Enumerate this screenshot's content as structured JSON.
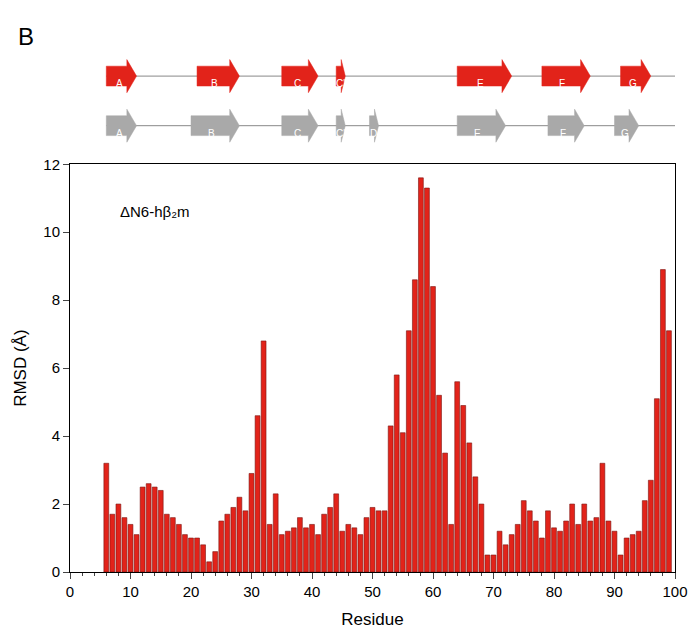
{
  "chart_data": {
    "type": "bar",
    "panel_label": "B",
    "annotation": "ΔN6-hβ₂m",
    "x_label": "Residue",
    "y_label": "RMSD (Å)",
    "color": "#e2231a",
    "x": [
      6,
      7,
      8,
      9,
      10,
      11,
      12,
      13,
      14,
      15,
      16,
      17,
      18,
      19,
      20,
      21,
      22,
      23,
      24,
      25,
      26,
      27,
      28,
      29,
      30,
      31,
      32,
      33,
      34,
      35,
      36,
      37,
      38,
      39,
      40,
      41,
      42,
      43,
      44,
      45,
      46,
      47,
      48,
      49,
      50,
      51,
      52,
      53,
      54,
      55,
      56,
      57,
      58,
      59,
      60,
      61,
      62,
      63,
      64,
      65,
      66,
      67,
      68,
      69,
      70,
      71,
      72,
      73,
      74,
      75,
      76,
      77,
      78,
      79,
      80,
      81,
      82,
      83,
      84,
      85,
      86,
      87,
      88,
      89,
      90,
      91,
      92,
      93,
      94,
      95,
      96,
      97,
      98,
      99
    ],
    "values": [
      3.2,
      1.7,
      2.0,
      1.6,
      1.4,
      1.1,
      2.5,
      2.6,
      2.5,
      2.4,
      1.7,
      1.6,
      1.4,
      1.1,
      1.0,
      1.0,
      0.8,
      0.3,
      0.6,
      1.5,
      1.7,
      1.9,
      2.2,
      1.8,
      2.9,
      4.6,
      6.8,
      1.4,
      2.3,
      1.1,
      1.2,
      1.3,
      1.6,
      1.3,
      1.4,
      1.1,
      1.7,
      1.9,
      2.3,
      1.2,
      1.4,
      1.3,
      1.1,
      1.6,
      1.9,
      1.8,
      1.8,
      4.3,
      5.8,
      4.1,
      7.1,
      8.6,
      11.6,
      11.3,
      8.4,
      5.2,
      3.5,
      1.4,
      5.6,
      4.9,
      3.8,
      2.8,
      2.0,
      0.5,
      0.5,
      1.2,
      0.8,
      1.1,
      1.4,
      2.1,
      1.8,
      1.5,
      1.0,
      1.8,
      1.3,
      1.2,
      1.5,
      2.0,
      1.4,
      2.0,
      1.5,
      1.6,
      3.2,
      1.5,
      1.2,
      0.5,
      1.0,
      1.1,
      1.2,
      2.1,
      2.7,
      5.1,
      8.9,
      7.1
    ],
    "xlim": [
      0,
      100
    ],
    "xticks": [
      0,
      10,
      20,
      30,
      40,
      50,
      60,
      70,
      80,
      90,
      100
    ],
    "ylim": [
      0,
      12
    ],
    "yticks": [
      0,
      2,
      4,
      6,
      8,
      10,
      12
    ],
    "grid": false,
    "secondary_structure": [
      {
        "color": "#e2231a",
        "strands": [
          {
            "label": "A",
            "start": 6,
            "end": 11
          },
          {
            "label": "B",
            "start": 21,
            "end": 28
          },
          {
            "label": "C",
            "start": 35,
            "end": 41
          },
          {
            "label": "C'",
            "start": 44,
            "end": 45.5
          },
          {
            "label": "E",
            "start": 64,
            "end": 73
          },
          {
            "label": "F",
            "start": 78,
            "end": 86
          },
          {
            "label": "G",
            "start": 91,
            "end": 96
          }
        ]
      },
      {
        "color": "#a9a9a9",
        "strands": [
          {
            "label": "A",
            "start": 6,
            "end": 11
          },
          {
            "label": "B",
            "start": 20,
            "end": 28
          },
          {
            "label": "C",
            "start": 35,
            "end": 41
          },
          {
            "label": "C'",
            "start": 44,
            "end": 45.5
          },
          {
            "label": "D",
            "start": 49.5,
            "end": 51
          },
          {
            "label": "E",
            "start": 64,
            "end": 72
          },
          {
            "label": "F",
            "start": 79,
            "end": 85
          },
          {
            "label": "G",
            "start": 90,
            "end": 94
          }
        ]
      }
    ]
  }
}
